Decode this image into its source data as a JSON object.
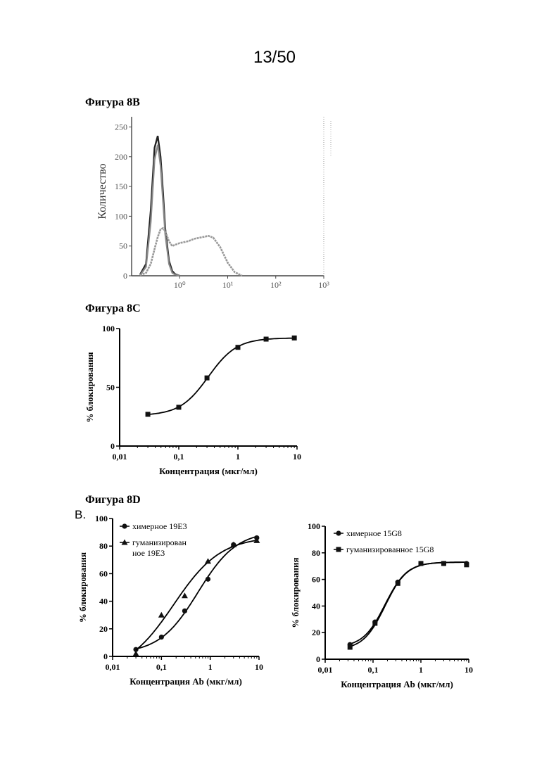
{
  "page_number": "13/50",
  "figures": {
    "b": {
      "title": "Фигура 8B"
    },
    "c": {
      "title": "Фигура 8C"
    },
    "d": {
      "title": "Фигура 8D",
      "panel_letter": "B."
    }
  },
  "chart_data": [
    {
      "id": "fig8b",
      "type": "line",
      "title": "Фигура 8B",
      "xlabel": "",
      "ylabel": "Количество",
      "xscale": "log",
      "xlim": [
        0.1,
        1000
      ],
      "ylim": [
        0,
        260
      ],
      "x_ticks": [
        1,
        10,
        100,
        1000
      ],
      "x_tick_labels": [
        "10⁰",
        "10¹",
        "10²",
        "10³"
      ],
      "y_ticks": [
        0,
        50,
        100,
        150,
        200,
        250
      ],
      "y_tick_labels": [
        "0",
        "50",
        "100",
        "150",
        "200",
        "250"
      ],
      "series": [
        {
          "x": [
            0.15,
            0.2,
            0.25,
            0.3,
            0.35,
            0.4,
            0.45,
            0.5,
            0.6,
            0.7,
            0.8,
            1.0
          ],
          "y": [
            2,
            20,
            110,
            215,
            235,
            200,
            140,
            80,
            25,
            8,
            3,
            0
          ]
        },
        {
          "x": [
            0.15,
            0.2,
            0.25,
            0.3,
            0.35,
            0.4,
            0.45,
            0.5,
            0.6,
            0.7,
            0.8,
            1.0
          ],
          "y": [
            1,
            15,
            90,
            195,
            220,
            185,
            125,
            70,
            20,
            5,
            2,
            0
          ]
        },
        {
          "x": [
            0.15,
            0.2,
            0.25,
            0.3,
            0.35,
            0.4,
            0.45,
            0.5,
            0.6,
            0.7,
            0.8,
            1.0,
            1.5,
            2,
            3,
            4,
            5,
            7,
            10,
            14,
            20
          ],
          "y": [
            1,
            5,
            20,
            45,
            65,
            78,
            80,
            75,
            58,
            50,
            52,
            55,
            58,
            62,
            65,
            67,
            64,
            48,
            22,
            6,
            0
          ]
        }
      ]
    },
    {
      "id": "fig8c",
      "type": "line",
      "title": "Фигура 8C",
      "xlabel": "Концентрация (мкг/мл)",
      "ylabel": "% блокирования",
      "xscale": "log",
      "xlim": [
        0.01,
        10
      ],
      "ylim": [
        0,
        100
      ],
      "x_ticks": [
        0.01,
        0.1,
        1,
        10
      ],
      "x_tick_labels": [
        "0,01",
        "0,1",
        "1",
        "10"
      ],
      "y_ticks": [
        0,
        50,
        100
      ],
      "y_tick_labels": [
        "0",
        "50",
        "100"
      ],
      "series": [
        {
          "x": [
            0.03,
            0.1,
            0.3,
            1,
            3,
            9
          ],
          "y": [
            27,
            33,
            58,
            84,
            91,
            92
          ]
        }
      ]
    },
    {
      "id": "fig8d-left",
      "type": "line",
      "title": "",
      "xlabel": "Концентрация Ab (мкг/мл)",
      "ylabel": "% блокирования",
      "xscale": "log",
      "xlim": [
        0.01,
        10
      ],
      "ylim": [
        0,
        100
      ],
      "x_ticks": [
        0.01,
        0.1,
        1,
        10
      ],
      "x_tick_labels": [
        "0,01",
        "0,1",
        "1",
        "10"
      ],
      "y_ticks": [
        0,
        20,
        40,
        60,
        80,
        100
      ],
      "y_tick_labels": [
        "0",
        "20",
        "40",
        "60",
        "80",
        "100"
      ],
      "legend": "top-left",
      "series": [
        {
          "name": "химерное 19E3",
          "marker": "circle",
          "x": [
            0.03,
            0.1,
            0.3,
            0.9,
            3,
            9
          ],
          "y": [
            5,
            14,
            33,
            56,
            81,
            86
          ]
        },
        {
          "name": "гуманизированное 19E3",
          "marker": "triangle",
          "x": [
            0.03,
            0.1,
            0.3,
            0.9,
            3,
            9
          ],
          "y": [
            2,
            30,
            44,
            69,
            81,
            84
          ]
        }
      ],
      "legend_lines": [
        [
          "химерное 19E3"
        ],
        [
          "гуманизирован",
          "ное 19E3"
        ]
      ]
    },
    {
      "id": "fig8d-right",
      "type": "line",
      "title": "",
      "xlabel": "Концентрация Ab (мкг/мл)",
      "ylabel": "% блокирования",
      "xscale": "log",
      "xlim": [
        0.01,
        10
      ],
      "ylim": [
        0,
        100
      ],
      "x_ticks": [
        0.01,
        0.1,
        1,
        10
      ],
      "x_tick_labels": [
        "0,01",
        "0,1",
        "1",
        "10"
      ],
      "y_ticks": [
        0,
        20,
        40,
        60,
        80,
        100
      ],
      "y_tick_labels": [
        "0",
        "20",
        "40",
        "60",
        "80",
        "100"
      ],
      "legend": "top-left",
      "series": [
        {
          "name": "химерное 15G8",
          "marker": "circle",
          "x": [
            0.033,
            0.11,
            0.33,
            1,
            3,
            9
          ],
          "y": [
            11,
            28,
            58,
            72,
            72,
            72
          ]
        },
        {
          "name": "гуманизированное 15G8",
          "marker": "square",
          "x": [
            0.033,
            0.11,
            0.33,
            1,
            3,
            9
          ],
          "y": [
            9,
            27,
            57,
            72,
            72,
            71
          ]
        }
      ],
      "legend_lines": [
        [
          "химерное 15G8"
        ],
        [
          "гуманизированное 15G8"
        ]
      ]
    }
  ]
}
